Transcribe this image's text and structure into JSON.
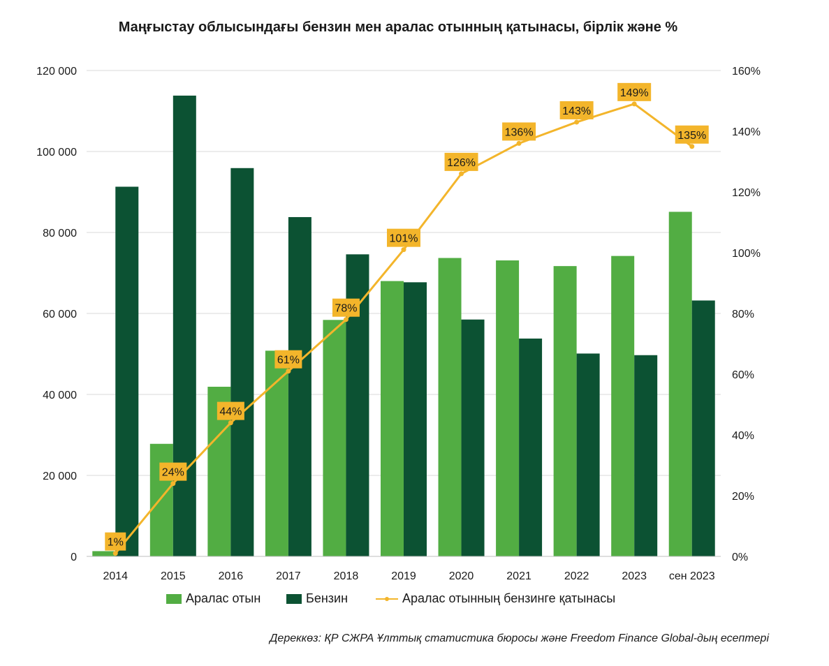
{
  "chart_data": {
    "type": "bar",
    "title": "Маңғыстау облысындағы бензин мен аралас отынның қатынасы, бірлік және %",
    "categories": [
      "2014",
      "2015",
      "2016",
      "2017",
      "2018",
      "2019",
      "2020",
      "2021",
      "2022",
      "2023",
      "сен 2023"
    ],
    "series": [
      {
        "name": "Аралас отын",
        "type": "bar",
        "axis": "left",
        "color": "#52ad43",
        "values": [
          1300,
          27800,
          41900,
          50800,
          58400,
          68000,
          73700,
          73100,
          71700,
          74200,
          85100
        ]
      },
      {
        "name": "Бензин",
        "type": "bar",
        "axis": "left",
        "color": "#0c5233",
        "values": [
          91300,
          113800,
          95900,
          83800,
          74600,
          67700,
          58500,
          53800,
          50100,
          49700,
          63200
        ]
      },
      {
        "name": "Аралас отынның бензинге қатынасы",
        "type": "line",
        "axis": "right",
        "color": "#f3b52b",
        "values": [
          1,
          24,
          44,
          61,
          78,
          101,
          126,
          136,
          143,
          149,
          135
        ],
        "labels": [
          "1%",
          "24%",
          "44%",
          "61%",
          "78%",
          "101%",
          "126%",
          "136%",
          "143%",
          "149%",
          "135%"
        ]
      }
    ],
    "y_left": {
      "min": 0,
      "max": 120000,
      "ticks": [
        0,
        20000,
        40000,
        60000,
        80000,
        100000,
        120000
      ],
      "tick_labels": [
        "0",
        "20 000",
        "40 000",
        "60 000",
        "80 000",
        "100 000",
        "120 000"
      ]
    },
    "y_right": {
      "min": 0,
      "max": 160,
      "ticks": [
        0,
        20,
        40,
        60,
        80,
        100,
        120,
        140,
        160
      ],
      "tick_labels": [
        "0%",
        "20%",
        "40%",
        "60%",
        "80%",
        "100%",
        "120%",
        "140%",
        "160%"
      ]
    },
    "grid": true,
    "legend_position": "bottom",
    "label_box_color": "#f3b52b"
  },
  "source": "Дереккөз: ҚР СЖРА Ұлттық статистика бюросы және Freedom Finance Global-дың есептері"
}
